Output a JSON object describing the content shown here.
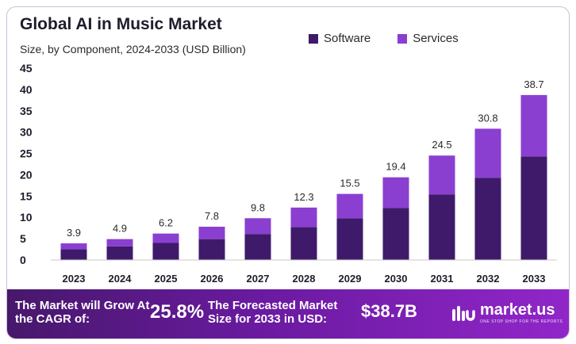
{
  "chart_data": {
    "type": "bar",
    "stacked": true,
    "title": "Global AI in Music Market",
    "subtitle": "Size, by Component, 2024-2033 (USD Billion)",
    "xlabel": "",
    "ylabel": "",
    "ylim": [
      0,
      45
    ],
    "yticks": [
      "45",
      "40",
      "35",
      "30",
      "25",
      "20",
      "15",
      "10",
      "5",
      "0"
    ],
    "grid": false,
    "legend_position": "top-right",
    "categories": [
      "2023",
      "2024",
      "2025",
      "2026",
      "2027",
      "2028",
      "2029",
      "2030",
      "2031",
      "2032",
      "2033"
    ],
    "series": [
      {
        "name": "Software",
        "color": "#3f1a6b",
        "values": [
          2.5,
          3.2,
          4.0,
          4.9,
          6.1,
          7.7,
          9.8,
          12.2,
          15.4,
          19.3,
          24.3
        ]
      },
      {
        "name": "Services",
        "color": "#8a3fd1",
        "values": [
          1.4,
          1.7,
          2.2,
          2.9,
          3.7,
          4.6,
          5.7,
          7.2,
          9.1,
          11.5,
          14.4
        ]
      }
    ],
    "totals": [
      "3.9",
      "4.9",
      "6.2",
      "7.8",
      "9.8",
      "12.3",
      "15.5",
      "19.4",
      "24.5",
      "30.8",
      "38.7"
    ]
  },
  "footer": {
    "cagr_text": "The Market will Grow At the CAGR of:",
    "cagr_value": "25.8%",
    "forecast_text": "The Forecasted Market Size for 2033 in USD:",
    "forecast_value": "$38.7B",
    "brand_name": "market.us",
    "brand_tagline": "ONE STOP SHOP FOR THE REPORTS",
    "brand_icon": "market-us-logo-icon"
  }
}
